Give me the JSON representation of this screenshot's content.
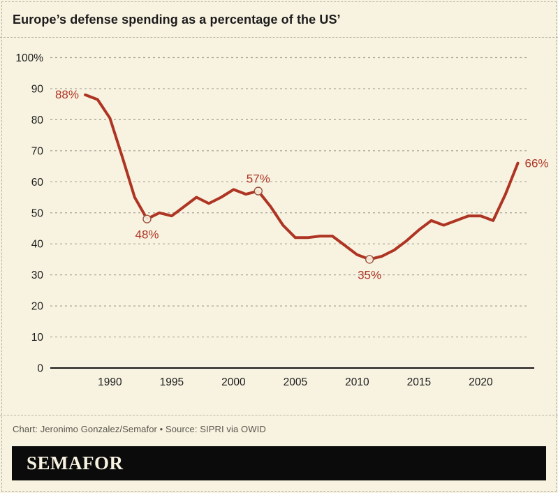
{
  "header": {
    "title": "Europe’s defense spending as a percentage of the US’"
  },
  "footer": {
    "credit": "Chart: Jeronimo Gonzalez/Semafor • Source: SIPRI via OWID",
    "logo": "SEMAFOR"
  },
  "colors": {
    "background": "#f8f3e1",
    "line": "#ae3423",
    "annotation": "#ae3423",
    "marker_stroke": "#9a5240",
    "axis": "#161616",
    "grid": "#a6a294",
    "title_text": "#1b1b1b",
    "credit_text": "#57544b",
    "logo_bar": "#0b0b0b",
    "logo_text": "#f8f3e1"
  },
  "chart_data": {
    "type": "line",
    "title": "Europe’s defense spending as a percentage of the US’",
    "xlabel": "",
    "ylabel": "",
    "ylim": [
      0,
      100
    ],
    "grid": "horizontal-dashed",
    "legend": "none",
    "x": [
      1988,
      1989,
      1990,
      1991,
      1992,
      1993,
      1994,
      1995,
      1996,
      1997,
      1998,
      1999,
      2000,
      2001,
      2002,
      2003,
      2004,
      2005,
      2006,
      2007,
      2008,
      2009,
      2010,
      2011,
      2012,
      2013,
      2014,
      2015,
      2016,
      2017,
      2018,
      2019,
      2020,
      2021,
      2022,
      2023
    ],
    "values": [
      88,
      86.5,
      80.5,
      68,
      55,
      48,
      50,
      49,
      52,
      55,
      53,
      55,
      57.5,
      56,
      57,
      52,
      46,
      42,
      42,
      42.5,
      42.5,
      39.5,
      36.5,
      35,
      36,
      38,
      41,
      44.5,
      47.5,
      46,
      47.5,
      49,
      49,
      47.5,
      56,
      66
    ],
    "yticks": [
      0,
      10,
      20,
      30,
      40,
      50,
      60,
      70,
      80,
      90,
      100
    ],
    "ytick_top_label": "100%",
    "xticks": [
      1990,
      1995,
      2000,
      2005,
      2010,
      2015,
      2020
    ],
    "annotations": [
      {
        "x": 1988,
        "value": 88,
        "label": "88%",
        "placement": "left",
        "marker": false
      },
      {
        "x": 1993,
        "value": 48,
        "label": "48%",
        "placement": "below",
        "marker": true
      },
      {
        "x": 2002,
        "value": 57,
        "label": "57%",
        "placement": "above",
        "marker": true
      },
      {
        "x": 2011,
        "value": 35,
        "label": "35%",
        "placement": "below",
        "marker": true
      },
      {
        "x": 2023,
        "value": 66,
        "label": "66%",
        "placement": "right",
        "marker": false
      }
    ]
  }
}
